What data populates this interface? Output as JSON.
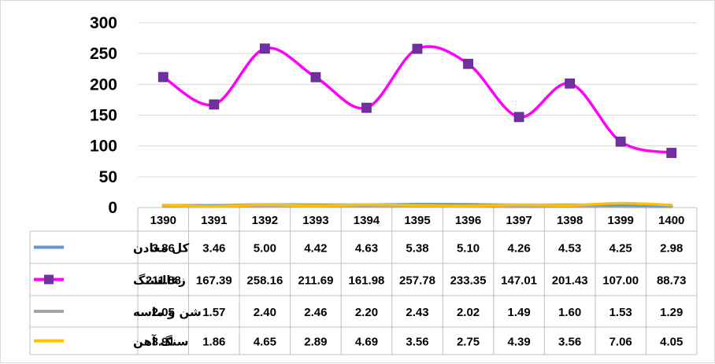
{
  "chart_data": {
    "type": "line",
    "title": "",
    "xlabel": "",
    "ylabel": "",
    "ylim": [
      0,
      300
    ],
    "yticks": [
      "0",
      "50",
      "100",
      "150",
      "200",
      "250",
      "300"
    ],
    "grid": true,
    "legend": "data-table-left",
    "categories": [
      "1390",
      "1391",
      "1392",
      "1393",
      "1394",
      "1395",
      "1396",
      "1397",
      "1398",
      "1399",
      "1400"
    ],
    "series": [
      {
        "name": "کل معادن",
        "color": "#5b9bd5",
        "marker": "none",
        "values": [
          3.86,
          3.46,
          5.0,
          4.42,
          4.63,
          5.38,
          5.1,
          4.26,
          4.53,
          4.25,
          2.98
        ],
        "labels": [
          "3.86",
          "3.46",
          "5.00",
          "4.42",
          "4.63",
          "5.38",
          "5.10",
          "4.26",
          "4.53",
          "4.25",
          "2.98"
        ]
      },
      {
        "name": "زغالسنگ",
        "color": "#ff00ff",
        "marker": "square",
        "marker_color": "#7030a0",
        "values": [
          211.88,
          167.39,
          258.16,
          211.69,
          161.98,
          257.78,
          233.35,
          147.01,
          201.43,
          107.0,
          88.73
        ],
        "labels": [
          "211.88",
          "167.39",
          "258.16",
          "211.69",
          "161.98",
          "257.78",
          "233.35",
          "147.01",
          "201.43",
          "107.00",
          "88.73"
        ]
      },
      {
        "name": "شن و ماسه",
        "color": "#a5a5a5",
        "marker": "none",
        "values": [
          2.05,
          1.57,
          2.4,
          2.46,
          2.2,
          2.43,
          2.02,
          1.49,
          1.6,
          1.53,
          1.29
        ],
        "labels": [
          "2.05",
          "1.57",
          "2.40",
          "2.46",
          "2.20",
          "2.43",
          "2.02",
          "1.49",
          "1.60",
          "1.53",
          "1.29"
        ]
      },
      {
        "name": "سنگ آهن",
        "color": "#ffc000",
        "marker": "none",
        "values": [
          3.91,
          1.86,
          4.65,
          2.89,
          4.69,
          3.56,
          2.75,
          4.39,
          3.56,
          7.06,
          4.05
        ],
        "labels": [
          "3.91",
          "1.86",
          "4.65",
          "2.89",
          "4.69",
          "3.56",
          "2.75",
          "4.39",
          "3.56",
          "7.06",
          "4.05"
        ]
      }
    ]
  }
}
